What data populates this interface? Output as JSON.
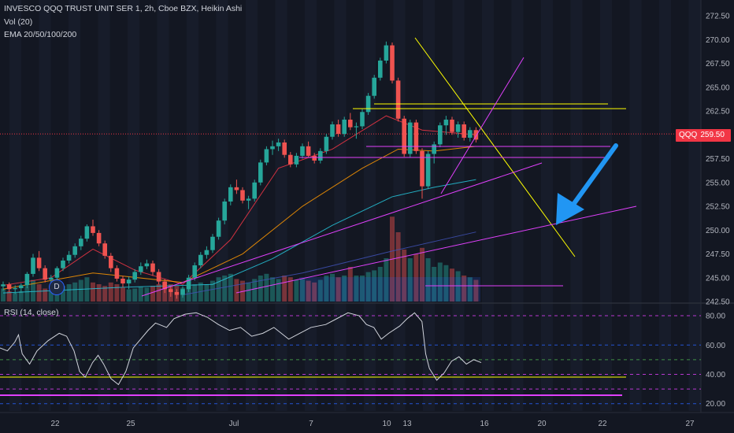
{
  "legend": {
    "main": "INVESCO QQQ TRUST UNIT SER 1, 2h, Cboe BZX, Heikin Ashi",
    "vol": "Vol (20)",
    "ema": "EMA 20/50/100/200",
    "rsi": "RSI (14, close)"
  },
  "price_tag": {
    "symbol": "QQQ",
    "price": "259.50"
  },
  "event_marker": "D",
  "colors": {
    "background": "#131722",
    "bull": "#26a69a",
    "bear": "#ef5350",
    "yellow_lines": "#ffff00",
    "magenta_lines": "#e040fb",
    "arrow": "#2196f3",
    "rsi_line": "#d1d4dc"
  },
  "chart_data": [
    {
      "type": "candlestick",
      "style": "Heikin Ashi",
      "ylim": [
        242.5,
        273.5
      ],
      "y_ticks": [
        "272.50",
        "270.00",
        "267.50",
        "265.00",
        "262.50",
        "260.00",
        "257.50",
        "255.00",
        "252.50",
        "250.00",
        "247.50",
        "245.00",
        "242.50"
      ],
      "x_ticks": [
        "22",
        "25",
        "Jul",
        "7",
        "10",
        "13",
        "16",
        "20",
        "22",
        "27"
      ],
      "last_price": 259.5,
      "candles": [
        [
          244.1,
          244.6,
          243.6,
          244.3
        ],
        [
          244.3,
          244.5,
          243.5,
          243.8
        ],
        [
          243.8,
          244.2,
          243.3,
          243.9
        ],
        [
          243.9,
          244.4,
          243.4,
          244.2
        ],
        [
          244.2,
          245.6,
          243.9,
          245.4
        ],
        [
          245.4,
          247.5,
          245.1,
          247.1
        ],
        [
          247.1,
          247.8,
          245.7,
          246.0
        ],
        [
          246.0,
          246.3,
          244.5,
          244.8
        ],
        [
          244.8,
          245.3,
          244.1,
          245.0
        ],
        [
          245.0,
          246.2,
          244.7,
          246.0
        ],
        [
          246.0,
          247.1,
          245.7,
          246.8
        ],
        [
          246.8,
          247.8,
          246.5,
          247.4
        ],
        [
          247.4,
          248.6,
          247.1,
          248.3
        ],
        [
          248.3,
          249.4,
          247.9,
          249.1
        ],
        [
          249.1,
          250.6,
          248.8,
          250.4
        ],
        [
          250.4,
          251.1,
          249.4,
          249.7
        ],
        [
          249.7,
          250.0,
          248.3,
          248.6
        ],
        [
          248.6,
          248.9,
          247.0,
          247.3
        ],
        [
          247.3,
          247.6,
          245.6,
          246.0
        ],
        [
          246.0,
          246.3,
          244.6,
          244.9
        ],
        [
          244.9,
          245.2,
          244.0,
          244.4
        ],
        [
          244.4,
          245.1,
          243.8,
          244.8
        ],
        [
          244.8,
          245.9,
          244.5,
          245.6
        ],
        [
          245.6,
          246.6,
          245.3,
          246.2
        ],
        [
          246.2,
          246.9,
          245.9,
          246.5
        ],
        [
          246.5,
          246.8,
          245.2,
          245.6
        ],
        [
          245.6,
          245.9,
          244.3,
          244.6
        ],
        [
          244.6,
          244.9,
          243.4,
          243.8
        ],
        [
          243.8,
          244.1,
          243.0,
          243.5
        ],
        [
          243.5,
          243.8,
          242.8,
          243.2
        ],
        [
          243.2,
          244.1,
          242.9,
          243.8
        ],
        [
          243.8,
          245.3,
          243.5,
          245.0
        ],
        [
          245.0,
          246.6,
          244.7,
          246.3
        ],
        [
          246.3,
          247.7,
          246.0,
          247.4
        ],
        [
          247.4,
          248.3,
          247.0,
          247.9
        ],
        [
          247.9,
          249.6,
          247.6,
          249.3
        ],
        [
          249.3,
          251.3,
          249.0,
          251.0
        ],
        [
          251.0,
          253.3,
          250.6,
          253.0
        ],
        [
          253.0,
          254.8,
          252.6,
          254.5
        ],
        [
          254.5,
          255.3,
          253.8,
          254.2
        ],
        [
          254.2,
          254.5,
          252.8,
          253.1
        ],
        [
          253.1,
          253.6,
          252.2,
          253.3
        ],
        [
          253.3,
          255.3,
          253.0,
          255.0
        ],
        [
          255.0,
          257.4,
          254.7,
          257.1
        ],
        [
          257.1,
          258.8,
          256.8,
          258.5
        ],
        [
          258.5,
          259.4,
          257.9,
          258.8
        ],
        [
          258.8,
          259.6,
          258.3,
          259.2
        ],
        [
          259.2,
          259.5,
          257.6,
          257.9
        ],
        [
          257.9,
          258.2,
          256.6,
          256.9
        ],
        [
          256.9,
          258.1,
          256.6,
          257.8
        ],
        [
          257.8,
          259.1,
          257.5,
          258.8
        ],
        [
          258.8,
          259.3,
          257.6,
          257.8
        ],
        [
          257.8,
          258.1,
          257.0,
          257.3
        ],
        [
          257.3,
          258.6,
          257.0,
          258.3
        ],
        [
          258.3,
          260.1,
          258.0,
          259.8
        ],
        [
          259.8,
          261.4,
          259.5,
          261.1
        ],
        [
          261.1,
          261.6,
          259.8,
          260.1
        ],
        [
          260.1,
          261.9,
          259.8,
          261.6
        ],
        [
          261.6,
          262.3,
          260.5,
          260.8
        ],
        [
          260.8,
          261.3,
          259.6,
          260.9
        ],
        [
          260.9,
          262.7,
          260.6,
          262.4
        ],
        [
          262.4,
          264.4,
          262.1,
          264.1
        ],
        [
          264.1,
          266.3,
          263.8,
          266.0
        ],
        [
          266.0,
          268.1,
          265.7,
          267.8
        ],
        [
          267.8,
          269.8,
          267.5,
          269.4
        ],
        [
          269.4,
          269.7,
          265.4,
          265.7
        ],
        [
          265.7,
          266.0,
          261.4,
          261.7
        ],
        [
          261.7,
          262.0,
          257.7,
          258.0
        ],
        [
          258.0,
          261.6,
          257.6,
          261.3
        ],
        [
          261.3,
          261.6,
          258.0,
          258.3
        ],
        [
          258.3,
          258.6,
          253.3,
          254.6
        ],
        [
          254.6,
          258.3,
          254.3,
          258.0
        ],
        [
          258.0,
          259.3,
          257.0,
          259.0
        ],
        [
          259.0,
          261.3,
          258.7,
          261.0
        ],
        [
          261.0,
          262.0,
          260.0,
          261.6
        ],
        [
          261.6,
          261.9,
          260.0,
          260.3
        ],
        [
          260.3,
          261.4,
          259.7,
          261.1
        ],
        [
          261.1,
          261.4,
          259.4,
          259.7
        ],
        [
          259.7,
          260.8,
          259.3,
          260.5
        ],
        [
          260.5,
          260.8,
          259.2,
          259.5
        ]
      ],
      "volume": [
        0.15,
        0.12,
        0.1,
        0.12,
        0.18,
        0.25,
        0.2,
        0.15,
        0.12,
        0.16,
        0.18,
        0.2,
        0.22,
        0.25,
        0.28,
        0.22,
        0.2,
        0.18,
        0.22,
        0.2,
        0.16,
        0.14,
        0.15,
        0.17,
        0.16,
        0.18,
        0.2,
        0.22,
        0.2,
        0.18,
        0.16,
        0.18,
        0.2,
        0.22,
        0.2,
        0.24,
        0.28,
        0.3,
        0.32,
        0.26,
        0.24,
        0.22,
        0.26,
        0.3,
        0.32,
        0.28,
        0.26,
        0.3,
        0.28,
        0.25,
        0.26,
        0.24,
        0.22,
        0.25,
        0.3,
        0.32,
        0.28,
        0.3,
        0.4,
        0.3,
        0.3,
        0.34,
        0.36,
        0.4,
        0.5,
        0.98,
        0.8,
        0.6,
        0.5,
        0.55,
        0.62,
        0.5,
        0.4,
        0.45,
        0.42,
        0.38,
        0.35,
        0.3,
        0.28,
        0.25
      ],
      "ema": [
        {
          "name": "EMA 20",
          "color": "#f23645",
          "points": [
            [
              0,
              244.2
            ],
            [
              8,
              245.0
            ],
            [
              15,
              248.0
            ],
            [
              22,
              245.8
            ],
            [
              30,
              244.3
            ],
            [
              38,
              249.0
            ],
            [
              46,
              256.5
            ],
            [
              55,
              258.5
            ],
            [
              64,
              262.0
            ],
            [
              70,
              260.5
            ],
            [
              79,
              260.0
            ]
          ]
        },
        {
          "name": "EMA 50",
          "color": "#ff9800",
          "points": [
            [
              0,
              243.8
            ],
            [
              15,
              245.5
            ],
            [
              30,
              244.5
            ],
            [
              40,
              247.5
            ],
            [
              50,
              252.5
            ],
            [
              60,
              256.5
            ],
            [
              66,
              258.5
            ],
            [
              72,
              258.3
            ],
            [
              79,
              258.8
            ]
          ]
        },
        {
          "name": "EMA 100",
          "color": "#26c6da",
          "points": [
            [
              0,
              243.4
            ],
            [
              20,
              244.0
            ],
            [
              35,
              244.3
            ],
            [
              45,
              247.0
            ],
            [
              55,
              250.5
            ],
            [
              65,
              253.5
            ],
            [
              72,
              254.5
            ],
            [
              79,
              255.3
            ]
          ]
        },
        {
          "name": "EMA 200",
          "color": "#3f51b5",
          "points": [
            [
              30,
              243.2
            ],
            [
              50,
              245.5
            ],
            [
              65,
              247.8
            ],
            [
              79,
              249.8
            ]
          ]
        }
      ]
    },
    {
      "type": "line",
      "name": "RSI (14, close)",
      "ylim": [
        15,
        87
      ],
      "y_ticks": [
        "80.00",
        "60.00",
        "40.00",
        "20.00"
      ],
      "levels": [
        {
          "v": 80,
          "color": "#e040fb"
        },
        {
          "v": 60,
          "color": "#2962ff"
        },
        {
          "v": 50,
          "color": "#4caf50"
        },
        {
          "v": 40,
          "color": "#e040fb"
        },
        {
          "v": 30,
          "color": "#e040fb"
        },
        {
          "v": 20,
          "color": "#2962ff"
        }
      ],
      "values": [
        [
          0,
          58
        ],
        [
          4,
          56
        ],
        [
          8,
          62
        ],
        [
          10,
          67
        ],
        [
          12,
          54
        ],
        [
          16,
          47
        ],
        [
          20,
          56
        ],
        [
          26,
          63
        ],
        [
          32,
          68
        ],
        [
          36,
          66
        ],
        [
          40,
          56
        ],
        [
          43,
          42
        ],
        [
          46,
          38
        ],
        [
          50,
          48
        ],
        [
          53,
          53
        ],
        [
          56,
          47
        ],
        [
          60,
          37
        ],
        [
          64,
          33
        ],
        [
          68,
          42
        ],
        [
          72,
          58
        ],
        [
          76,
          64
        ],
        [
          80,
          70
        ],
        [
          84,
          75
        ],
        [
          90,
          72
        ],
        [
          94,
          78
        ],
        [
          100,
          81
        ],
        [
          106,
          82
        ],
        [
          112,
          79
        ],
        [
          118,
          74
        ],
        [
          124,
          70
        ],
        [
          130,
          72
        ],
        [
          136,
          66
        ],
        [
          142,
          68
        ],
        [
          148,
          72
        ],
        [
          156,
          64
        ],
        [
          162,
          68
        ],
        [
          168,
          72
        ],
        [
          176,
          74
        ],
        [
          182,
          78
        ],
        [
          188,
          82
        ],
        [
          194,
          80
        ],
        [
          198,
          74
        ],
        [
          202,
          72
        ],
        [
          206,
          64
        ],
        [
          210,
          68
        ],
        [
          216,
          73
        ],
        [
          220,
          78
        ],
        [
          224,
          82
        ],
        [
          228,
          76
        ],
        [
          230,
          54
        ],
        [
          232,
          44
        ],
        [
          236,
          36
        ],
        [
          240,
          41
        ],
        [
          244,
          49
        ],
        [
          248,
          52
        ],
        [
          252,
          47
        ],
        [
          256,
          50
        ],
        [
          260,
          48
        ]
      ],
      "yellow_hline": 38,
      "magenta_hline": 25
    }
  ]
}
